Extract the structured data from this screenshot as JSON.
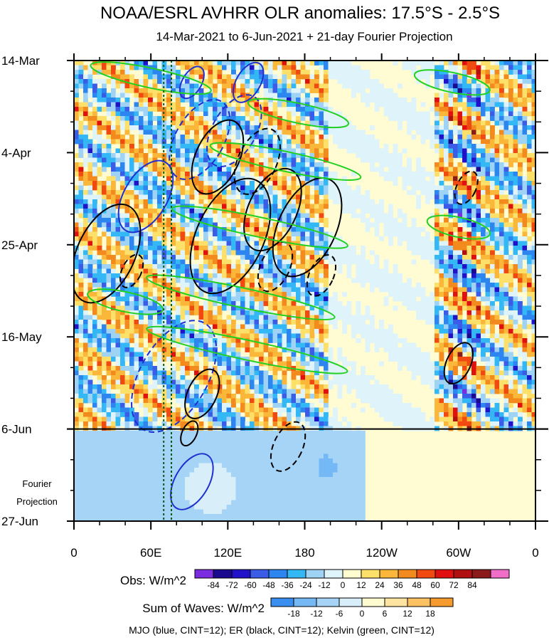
{
  "chart_data": {
    "type": "heatmap",
    "title": "NOAA/ESRL AVHRR OLR anomalies: 17.5°S - 2.5°S",
    "subtitle": "14-Mar-2021 to 6-Jun-2021 + 21-day Fourier Projection",
    "x_ticks": [
      "0",
      "60E",
      "120E",
      "180",
      "120W",
      "60W",
      "0"
    ],
    "x_tick_values": [
      0,
      60,
      120,
      180,
      240,
      300,
      360
    ],
    "y_ticks": [
      "14-Mar",
      "4-Apr",
      "25-Apr",
      "16-May",
      "6-Jun",
      "27-Jun"
    ],
    "y_tick_days": [
      0,
      21,
      42,
      63,
      84,
      105
    ],
    "xlim": [
      0,
      360
    ],
    "ylim_days": [
      0,
      105
    ],
    "observed_end_day": 84,
    "projection_label": [
      "Fourier",
      "Projection"
    ],
    "reference_lines_lon": [
      70,
      76
    ],
    "wave_contours": {
      "mjo": [
        {
          "lon": 125,
          "day": 16,
          "rlon": 22,
          "rday": 9,
          "sign": "neg"
        },
        {
          "lon": 98,
          "day": 18,
          "rlon": 22,
          "rday": 10,
          "sign": "neg"
        },
        {
          "lon": 78,
          "day": 72,
          "rlon": 20,
          "rday": 14,
          "sign": "neg"
        },
        {
          "lon": 56,
          "day": 31,
          "rlon": 10,
          "rday": 9,
          "sign": "pos"
        },
        {
          "lon": 136,
          "day": 5,
          "rlon": 12,
          "rday": 5,
          "sign": "pos"
        },
        {
          "lon": 92,
          "day": 96,
          "rlon": 10,
          "rday": 7,
          "sign": "pos"
        },
        {
          "lon": 92,
          "day": 5,
          "rlon": 8,
          "rday": 4,
          "sign": "pos"
        }
      ],
      "er": [
        {
          "lon": 25,
          "day": 44,
          "rlon": 14,
          "rday": 12,
          "sign": "pos"
        },
        {
          "lon": 122,
          "day": 40,
          "rlon": 12,
          "rday": 14,
          "sign": "pos"
        },
        {
          "lon": 155,
          "day": 34,
          "rlon": 14,
          "rday": 10,
          "sign": "pos"
        },
        {
          "lon": 182,
          "day": 38,
          "rlon": 12,
          "rday": 12,
          "sign": "pos"
        },
        {
          "lon": 112,
          "day": 22,
          "rlon": 14,
          "rday": 9,
          "sign": "pos"
        },
        {
          "lon": 100,
          "day": 76,
          "rlon": 10,
          "rday": 6,
          "sign": "pos"
        },
        {
          "lon": 300,
          "day": 69,
          "rlon": 8,
          "rday": 5,
          "sign": "pos"
        },
        {
          "lon": 90,
          "day": 85,
          "rlon": 6,
          "rday": 3,
          "sign": "pos"
        },
        {
          "lon": 143,
          "day": 23,
          "rlon": 14,
          "rday": 8,
          "sign": "neg"
        },
        {
          "lon": 157,
          "day": 47,
          "rlon": 10,
          "rday": 6,
          "sign": "neg"
        },
        {
          "lon": 193,
          "day": 49,
          "rlon": 8,
          "rday": 5,
          "sign": "neg"
        },
        {
          "lon": 167,
          "day": 88,
          "rlon": 13,
          "rday": 6,
          "sign": "neg"
        },
        {
          "lon": 306,
          "day": 29,
          "rlon": 5,
          "rday": 4,
          "sign": "neg"
        },
        {
          "lon": 45,
          "day": 48,
          "rlon": 6,
          "rday": 4,
          "sign": "neg"
        }
      ],
      "kelvin": [
        {
          "lon": 60,
          "day": 4,
          "rlon": 48,
          "rday": 2,
          "sign": "pos"
        },
        {
          "lon": 165,
          "day": 23,
          "rlon": 60,
          "rday": 2,
          "sign": "pos"
        },
        {
          "lon": 145,
          "day": 38,
          "rlon": 70,
          "rday": 2,
          "sign": "pos"
        },
        {
          "lon": 130,
          "day": 54,
          "rlon": 75,
          "rday": 2,
          "sign": "pos"
        },
        {
          "lon": 135,
          "day": 66,
          "rlon": 80,
          "rday": 2,
          "sign": "pos"
        },
        {
          "lon": 40,
          "day": 55,
          "rlon": 30,
          "rday": 2,
          "sign": "pos"
        },
        {
          "lon": 300,
          "day": 38,
          "rlon": 25,
          "rday": 2,
          "sign": "pos"
        },
        {
          "lon": 295,
          "day": 5,
          "rlon": 30,
          "rday": 2,
          "sign": "pos"
        },
        {
          "lon": 175,
          "day": 12,
          "rlon": 40,
          "rday": 2,
          "sign": "pos"
        }
      ]
    },
    "obs_colorbar": {
      "title": "Obs: W/m^2",
      "labels": [
        "-84",
        "-72",
        "-60",
        "-48",
        "-36",
        "-24",
        "-12",
        "0",
        "12",
        "24",
        "36",
        "48",
        "60",
        "72",
        "84"
      ],
      "colors": [
        "#7b2ce0",
        "#1b0a90",
        "#1f12c9",
        "#3b5ce6",
        "#2d86f0",
        "#33b8f5",
        "#9fd3f5",
        "#dff3fb",
        "#fffdd0",
        "#fde06a",
        "#fbb73a",
        "#f28a1e",
        "#f04a10",
        "#e01010",
        "#b01010",
        "#8b1a1a",
        "#f06ec8"
      ]
    },
    "waves_colorbar": {
      "title": "Sum of Waves: W/m^2",
      "labels": [
        "-18",
        "-12",
        "-6",
        "0",
        "6",
        "12",
        "18"
      ],
      "colors": [
        "#3a8ef0",
        "#74b9f5",
        "#a6d4f7",
        "#d8effa",
        "#fffdd0",
        "#fde4a0",
        "#fbc162",
        "#f59a2e"
      ]
    },
    "footnote": "MJO (blue, CINT=12); ER (black, CINT=12); Kelvin (green, CINT=12)"
  }
}
